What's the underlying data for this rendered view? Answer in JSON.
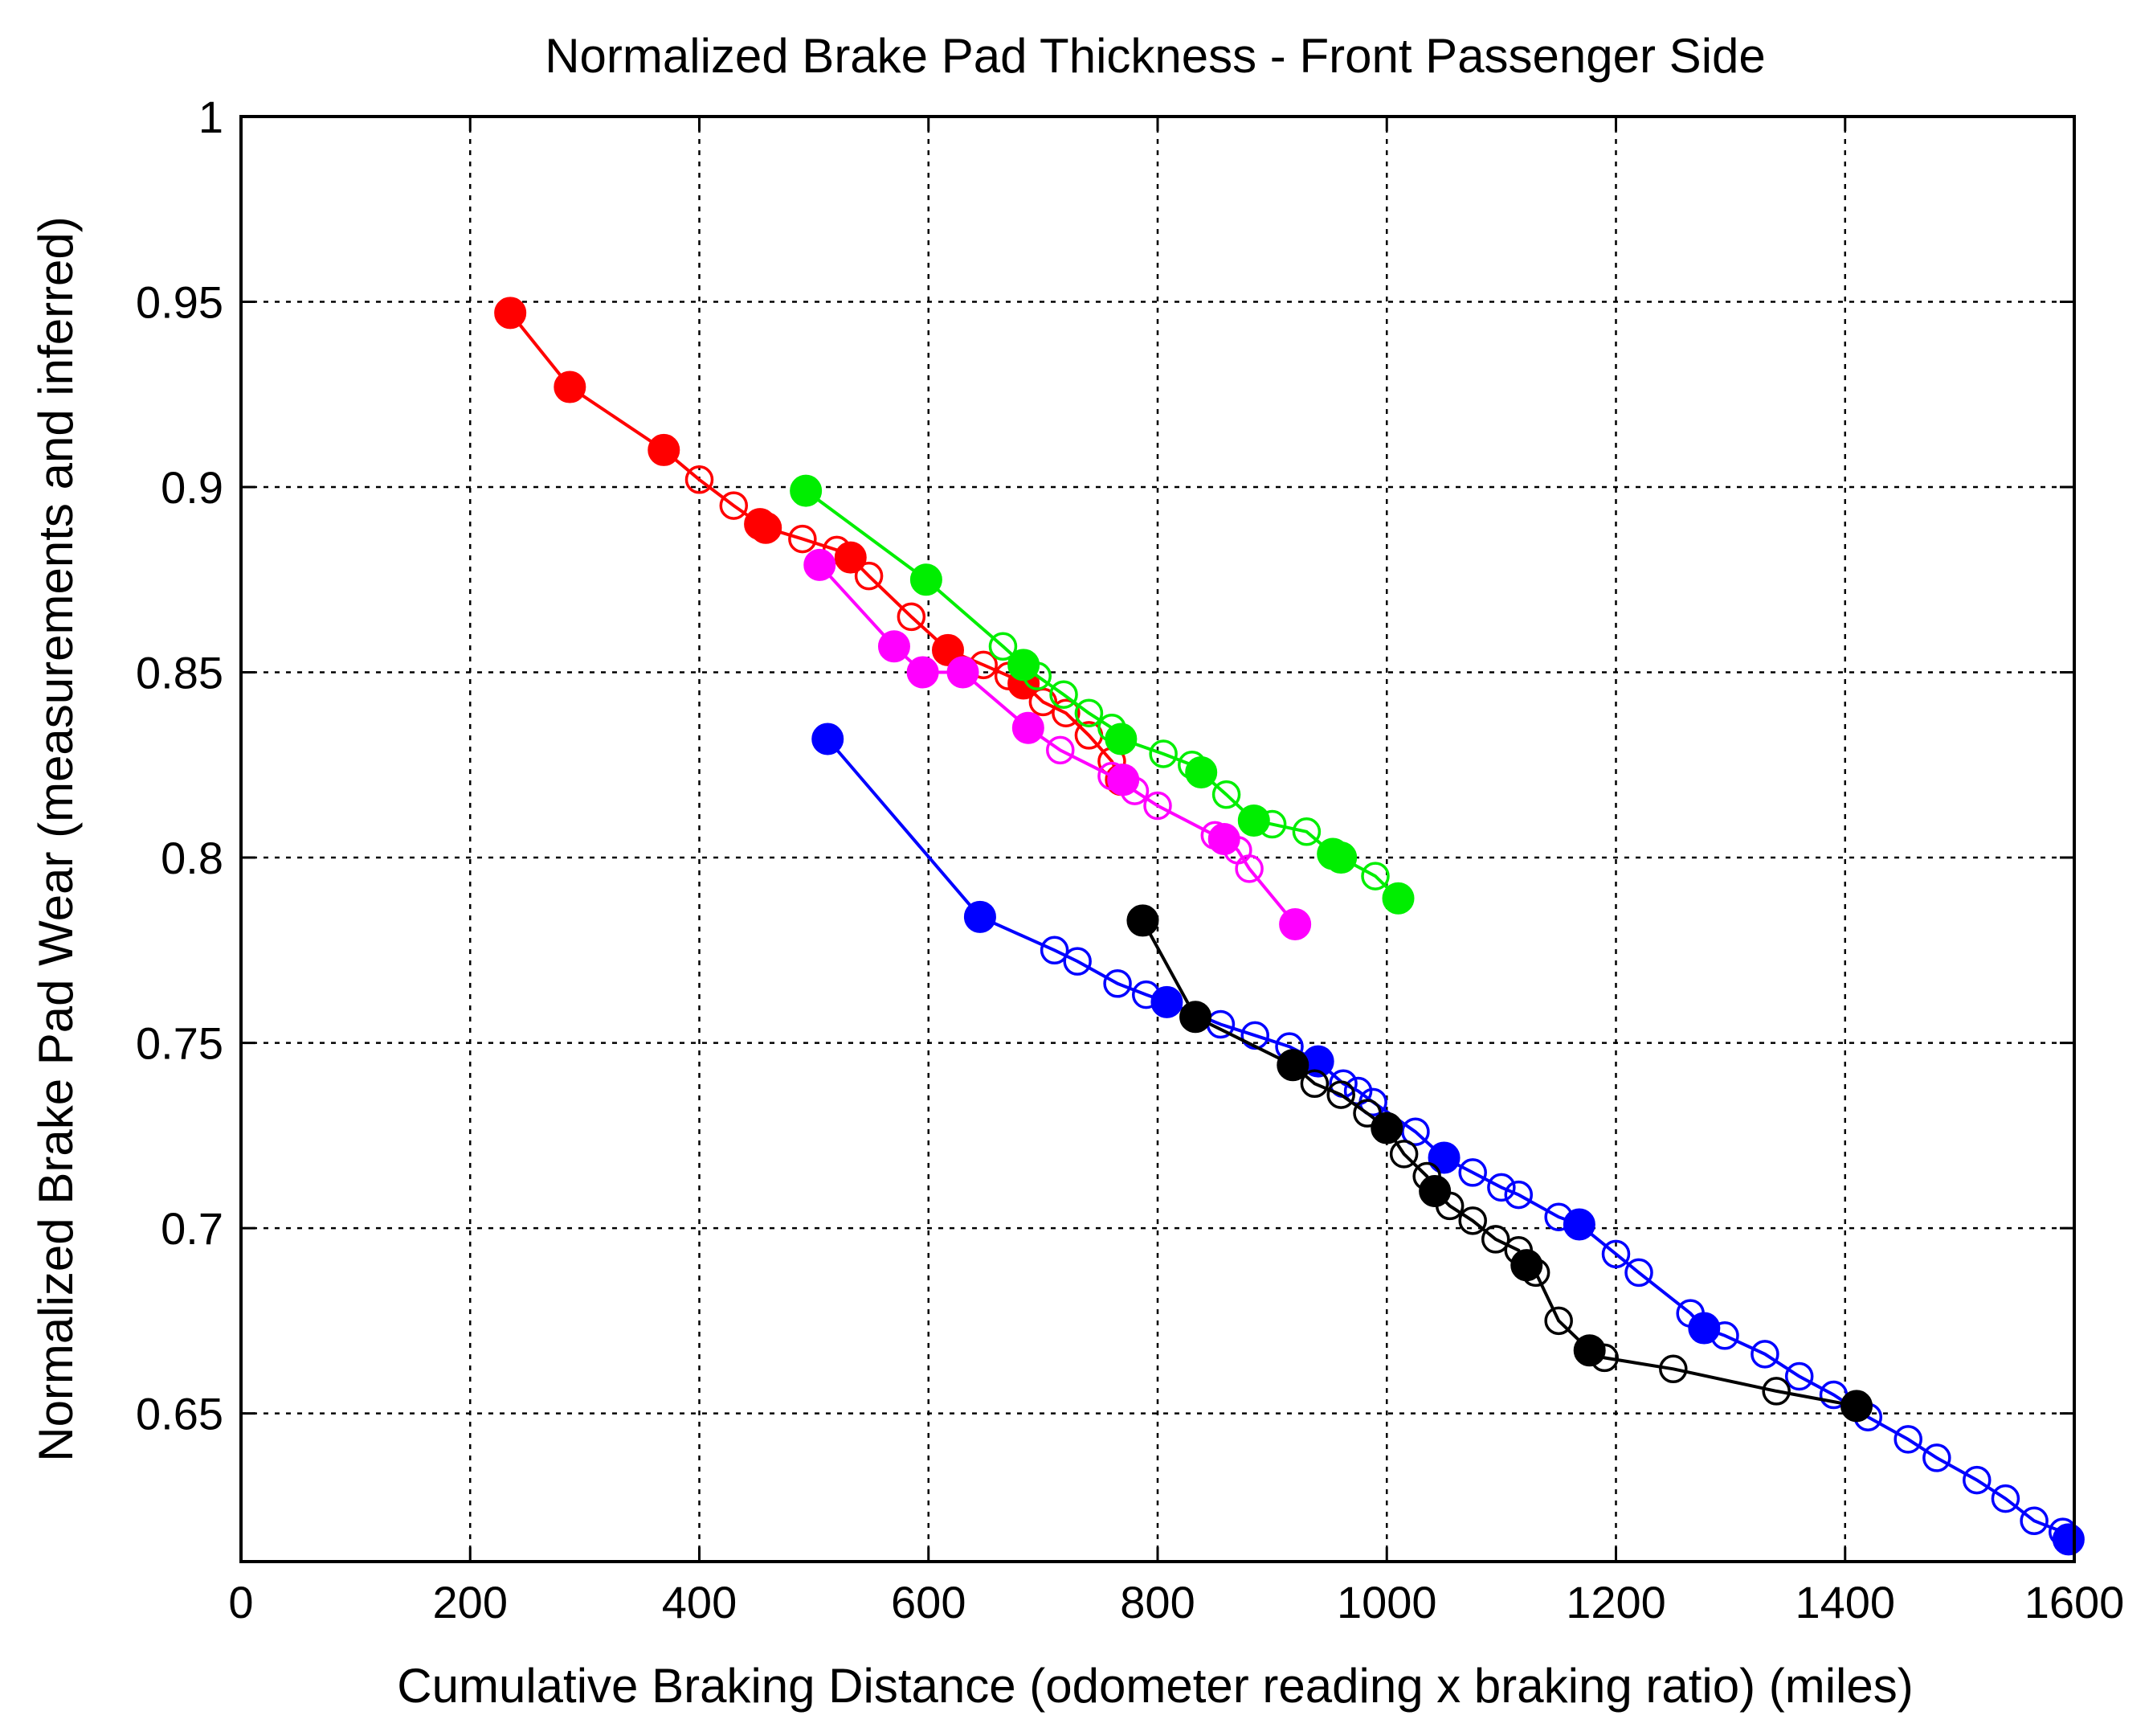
{
  "chart_data": {
    "type": "scatter",
    "title": "Normalized Brake Pad Thickness - Front Passenger Side",
    "xlabel": "Cumulative Braking Distance (odometer reading x braking ratio) (miles)",
    "ylabel": "Normalized Brake Pad Wear (measurements and inferred)",
    "xlim": [
      0,
      1600
    ],
    "ylim": [
      0.61,
      1.0
    ],
    "xticks": [
      0,
      200,
      400,
      600,
      800,
      1000,
      1200,
      1400,
      1600
    ],
    "xtick_labels": [
      "0",
      "200",
      "400",
      "600",
      "800",
      "1000",
      "1200",
      "1400",
      "1600"
    ],
    "yticks": [
      0.65,
      0.7,
      0.75,
      0.8,
      0.85,
      0.9,
      0.95,
      1.0
    ],
    "ytick_labels": [
      "0.65",
      "0.7",
      "0.75",
      "0.8",
      "0.85",
      "0.9",
      "0.95",
      "1"
    ],
    "grid": true,
    "series": [
      {
        "name": "red",
        "color": "#ff0000",
        "measured": [
          [
            235,
            0.947
          ],
          [
            287,
            0.927
          ],
          [
            369,
            0.91
          ],
          [
            453,
            0.89
          ],
          [
            458,
            0.889
          ],
          [
            532,
            0.881
          ],
          [
            617,
            0.856
          ],
          [
            683,
            0.847
          ],
          [
            768,
            0.821
          ]
        ],
        "inferred": [
          [
            400,
            0.902
          ],
          [
            430,
            0.895
          ],
          [
            490,
            0.886
          ],
          [
            520,
            0.883
          ],
          [
            548,
            0.876
          ],
          [
            585,
            0.865
          ],
          [
            648,
            0.852
          ],
          [
            670,
            0.849
          ],
          [
            700,
            0.842
          ],
          [
            720,
            0.839
          ],
          [
            740,
            0.833
          ],
          [
            760,
            0.826
          ]
        ]
      },
      {
        "name": "green",
        "color": "#00ee00",
        "measured": [
          [
            493,
            0.899
          ],
          [
            598,
            0.875
          ],
          [
            683,
            0.852
          ],
          [
            768,
            0.832
          ],
          [
            838,
            0.823
          ],
          [
            884,
            0.81
          ],
          [
            953,
            0.801
          ],
          [
            960,
            0.8
          ],
          [
            1010,
            0.789
          ]
        ],
        "inferred": [
          [
            665,
            0.857
          ],
          [
            695,
            0.849
          ],
          [
            718,
            0.844
          ],
          [
            740,
            0.839
          ],
          [
            760,
            0.835
          ],
          [
            805,
            0.828
          ],
          [
            830,
            0.825
          ],
          [
            860,
            0.817
          ],
          [
            900,
            0.809
          ],
          [
            930,
            0.807
          ],
          [
            990,
            0.795
          ]
        ]
      },
      {
        "name": "magenta",
        "color": "#ff00ff",
        "measured": [
          [
            505,
            0.879
          ],
          [
            570,
            0.857
          ],
          [
            595,
            0.85
          ],
          [
            630,
            0.85
          ],
          [
            687,
            0.835
          ],
          [
            770,
            0.821
          ],
          [
            858,
            0.805
          ],
          [
            920,
            0.782
          ]
        ],
        "inferred": [
          [
            715,
            0.829
          ],
          [
            760,
            0.822
          ],
          [
            780,
            0.818
          ],
          [
            800,
            0.814
          ],
          [
            850,
            0.806
          ],
          [
            870,
            0.802
          ],
          [
            880,
            0.797
          ]
        ]
      },
      {
        "name": "blue",
        "color": "#0000ff",
        "measured": [
          [
            512,
            0.832
          ],
          [
            645,
            0.784
          ],
          [
            808,
            0.761
          ],
          [
            940,
            0.745
          ],
          [
            1050,
            0.719
          ],
          [
            1168,
            0.701
          ],
          [
            1277,
            0.673
          ],
          [
            1595,
            0.616
          ]
        ],
        "inferred": [
          [
            710,
            0.775
          ],
          [
            730,
            0.772
          ],
          [
            765,
            0.766
          ],
          [
            790,
            0.763
          ],
          [
            855,
            0.755
          ],
          [
            885,
            0.752
          ],
          [
            915,
            0.749
          ],
          [
            962,
            0.739
          ],
          [
            975,
            0.737
          ],
          [
            988,
            0.734
          ],
          [
            1025,
            0.726
          ],
          [
            1075,
            0.715
          ],
          [
            1100,
            0.711
          ],
          [
            1115,
            0.709
          ],
          [
            1150,
            0.703
          ],
          [
            1200,
            0.693
          ],
          [
            1220,
            0.688
          ],
          [
            1265,
            0.677
          ],
          [
            1295,
            0.671
          ],
          [
            1330,
            0.666
          ],
          [
            1360,
            0.66
          ],
          [
            1390,
            0.655
          ],
          [
            1420,
            0.649
          ],
          [
            1455,
            0.643
          ],
          [
            1480,
            0.638
          ],
          [
            1515,
            0.632
          ],
          [
            1540,
            0.627
          ],
          [
            1565,
            0.621
          ],
          [
            1590,
            0.618
          ]
        ]
      },
      {
        "name": "black",
        "color": "#000000",
        "measured": [
          [
            787,
            0.783
          ],
          [
            833,
            0.757
          ],
          [
            918,
            0.744
          ],
          [
            1000,
            0.727
          ],
          [
            1042,
            0.71
          ],
          [
            1122,
            0.69
          ],
          [
            1177,
            0.667
          ],
          [
            1410,
            0.652
          ]
        ],
        "inferred": [
          [
            937,
            0.739
          ],
          [
            960,
            0.736
          ],
          [
            983,
            0.731
          ],
          [
            1015,
            0.72
          ],
          [
            1035,
            0.714
          ],
          [
            1055,
            0.706
          ],
          [
            1075,
            0.702
          ],
          [
            1095,
            0.697
          ],
          [
            1115,
            0.694
          ],
          [
            1130,
            0.688
          ],
          [
            1150,
            0.675
          ],
          [
            1190,
            0.665
          ],
          [
            1250,
            0.662
          ],
          [
            1340,
            0.656
          ]
        ]
      }
    ]
  }
}
